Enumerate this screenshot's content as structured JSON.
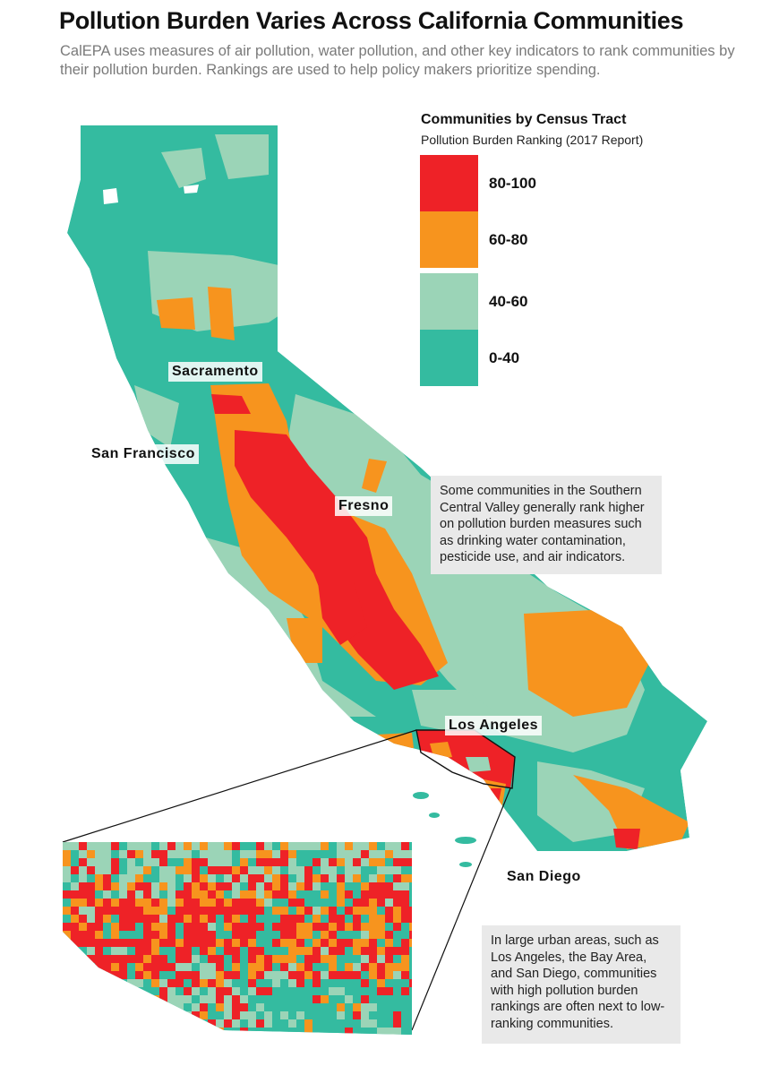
{
  "header": {
    "title": "Pollution Burden Varies Across California Communities",
    "subtitle": "CalEPA uses measures of air pollution, water pollution, and other key indicators to rank communities by their pollution burden. Rankings are used to help policy makers prioritize spending."
  },
  "legend": {
    "title": "Communities by Census Tract",
    "subtitle": "Pollution Burden Ranking (2017 Report)",
    "items": [
      {
        "label": "80-100",
        "color": "#ee2227"
      },
      {
        "label": "60-80",
        "color": "#f7941e"
      },
      {
        "label": "40-60",
        "color": "#9bd4b7"
      },
      {
        "label": "0-40",
        "color": "#34bba0"
      }
    ]
  },
  "cities": {
    "sacramento": "Sacramento",
    "san_francisco": "San Francisco",
    "fresno": "Fresno",
    "los_angeles": "Los Angeles",
    "san_diego": "San Diego"
  },
  "callouts": {
    "central_valley": "Some communities in the Southern Central Valley generally rank higher on pollution burden measures such as drinking water contamination, pesticide use, and air indicators.",
    "urban": "In large urban areas, such as Los Angeles, the Bay Area, and San Diego, communities with high pollution burden rankings are often next to low-ranking communities."
  }
}
